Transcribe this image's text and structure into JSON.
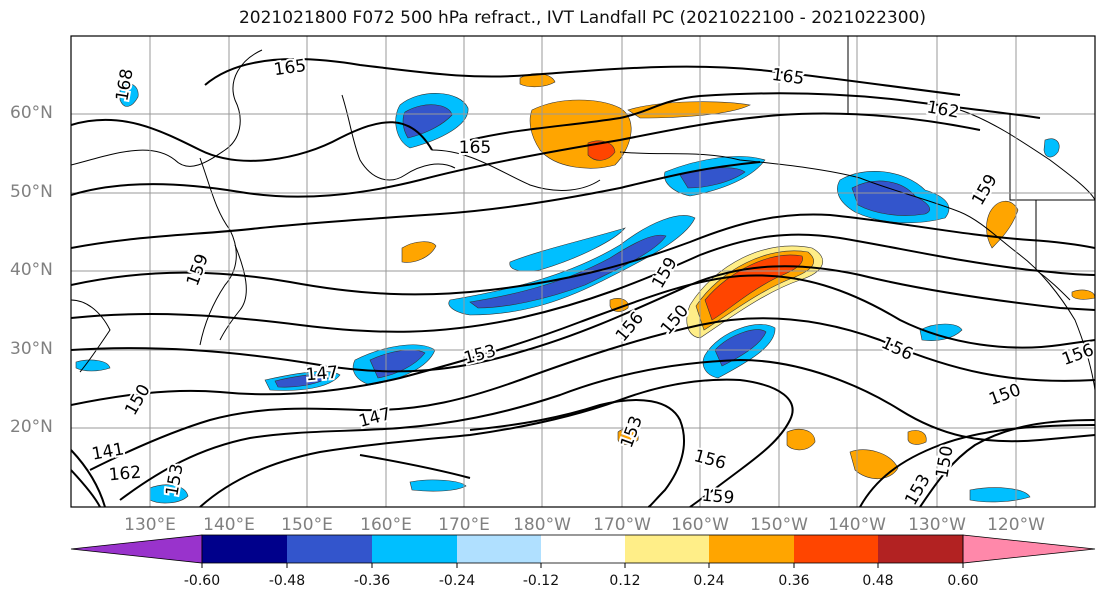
{
  "title": "2021021800 F072 500 hPa refract., IVT Landfall PC (2021022100 - 2021022300)",
  "lat_labels": [
    "60°N",
    "50°N",
    "40°N",
    "30°N",
    "20°N"
  ],
  "lon_labels": [
    "130°E",
    "140°E",
    "150°E",
    "160°E",
    "170°E",
    "180°W",
    "170°W",
    "160°W",
    "150°W",
    "140°W",
    "130°W",
    "120°W"
  ],
  "contour_labels": [
    "165",
    "165",
    "165",
    "168",
    "162",
    "159",
    "159",
    "159",
    "159",
    "156",
    "156",
    "156",
    "156",
    "153",
    "153",
    "153",
    "153",
    "150",
    "150",
    "150",
    "150",
    "147",
    "147",
    "141",
    "162"
  ],
  "colorbar": {
    "colors": [
      "#9933cc",
      "#00008b",
      "#3355cc",
      "#00bfff",
      "#b0e0ff",
      "#ffffff",
      "#ffee88",
      "#ffa500",
      "#ff4500",
      "#b22222",
      "#ff88aa"
    ],
    "tick_labels": [
      "-0.60",
      "-0.48",
      "-0.36",
      "-0.24",
      "-0.12",
      "0.12",
      "0.24",
      "0.36",
      "0.48",
      "0.60"
    ]
  }
}
